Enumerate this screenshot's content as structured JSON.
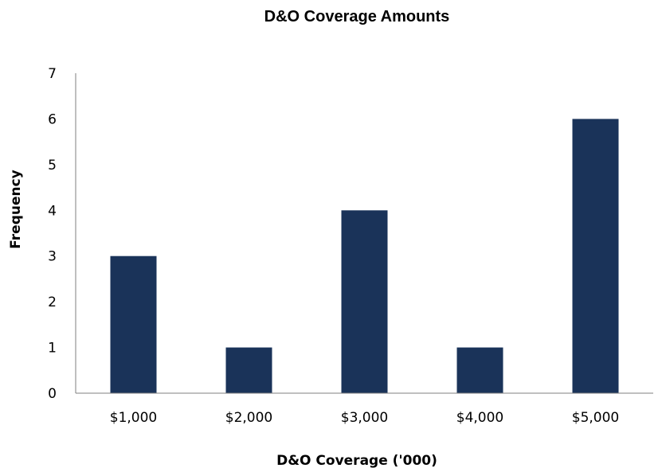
{
  "chart_data": {
    "type": "bar",
    "title": "D&O Coverage Amounts",
    "xlabel": "D&O Coverage ('000)",
    "ylabel": "Frequency",
    "categories": [
      "$1,000",
      "$2,000",
      "$3,000",
      "$4,000",
      "$5,000"
    ],
    "values": [
      3,
      1,
      4,
      1,
      6
    ],
    "ylim": [
      0,
      7
    ],
    "yticks": [
      0,
      1,
      2,
      3,
      4,
      5,
      6,
      7
    ],
    "grid": false,
    "legend": "none",
    "bar_color": "#1a3359"
  }
}
